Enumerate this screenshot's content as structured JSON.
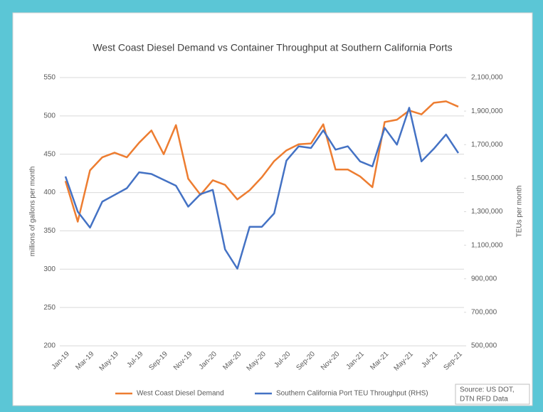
{
  "chart_data": {
    "type": "line",
    "title": "West Coast Diesel Demand vs Container Throughput at Southern California Ports",
    "y_label": "millions of gallons per month",
    "y2_label": "TEUs per month",
    "source": [
      "Source: US DOT,",
      "DTN RFD Data"
    ],
    "categories": [
      "Jan-19",
      null,
      "Mar-19",
      null,
      "May-19",
      null,
      "Jul-19",
      null,
      "Sep-19",
      null,
      "Nov-19",
      null,
      "Jan-20",
      null,
      "Mar-20",
      null,
      "May-20",
      null,
      "Jul-20",
      null,
      "Sep-20",
      null,
      "Nov-20",
      null,
      "Jan-21",
      null,
      "Mar-21",
      null,
      "May-21",
      null,
      "Jul-21",
      null,
      "Sep-21"
    ],
    "series": [
      {
        "name": "West Coast Diesel Demand",
        "color": "#ed7d31",
        "values": [
          415,
          362,
          429,
          446,
          452,
          446,
          465,
          481,
          450,
          488,
          418,
          397,
          416,
          410,
          391,
          403,
          420,
          441,
          455,
          463,
          464,
          489,
          430,
          430,
          421,
          407,
          492,
          495,
          507,
          502,
          517,
          519,
          512
        ]
      },
      {
        "name": "Southern California Port TEU Throughput (RHS)",
        "color": "#4472c4",
        "axis": "y2",
        "values": [
          1510000,
          1300000,
          1205000,
          1360000,
          1400000,
          1440000,
          1535000,
          1525000,
          1490000,
          1455000,
          1330000,
          1405000,
          1430000,
          1075000,
          960000,
          1210000,
          1210000,
          1290000,
          1605000,
          1690000,
          1680000,
          1785000,
          1670000,
          1690000,
          1600000,
          1570000,
          1800000,
          1700000,
          1920000,
          1600000,
          1675000,
          1760000,
          1650000
        ]
      }
    ],
    "ylim": [
      200,
      550
    ],
    "yticks": [
      200,
      250,
      300,
      350,
      400,
      450,
      500,
      550
    ],
    "y2lim": [
      500000,
      2100000
    ],
    "y2ticks": [
      {
        "value": 500000,
        "label": "500,000"
      },
      {
        "value": 700000,
        "label": "700,000"
      },
      {
        "value": 900000,
        "label": "900,000"
      },
      {
        "value": 1100000,
        "label": "1,100,000"
      },
      {
        "value": 1300000,
        "label": "1,300,000"
      },
      {
        "value": 1500000,
        "label": "1,500,000"
      },
      {
        "value": 1700000,
        "label": "1,700,000"
      },
      {
        "value": 1900000,
        "label": "1,900,000"
      },
      {
        "value": 2100000,
        "label": "2,100,000"
      }
    ],
    "grid": true
  }
}
